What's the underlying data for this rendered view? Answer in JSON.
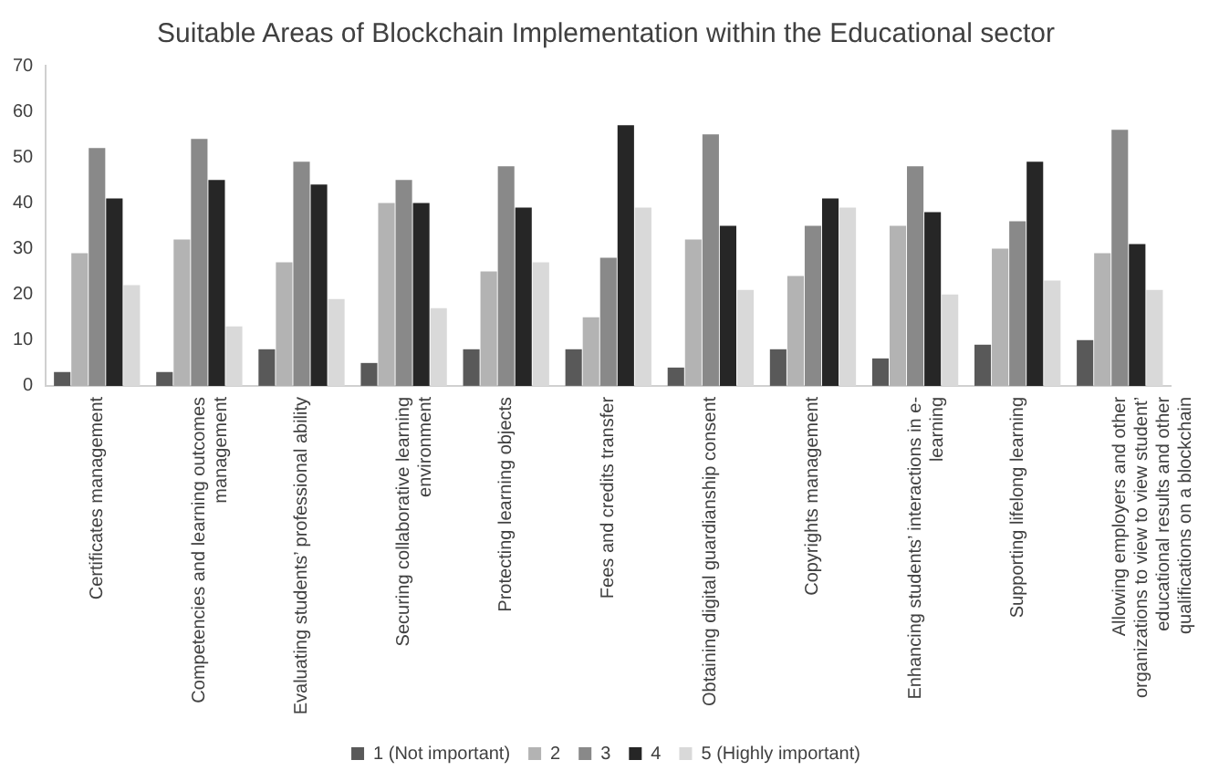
{
  "chart_data": {
    "type": "bar",
    "title": "Suitable Areas of Blockchain Implementation within the Educational sector",
    "categories": [
      "Certificates management",
      "Competencies and learning outcomes management",
      "Evaluating students’ professional ability",
      "Securing collaborative learning environment",
      "Protecting learning objects",
      "Fees and credits transfer",
      "Obtaining digital guardianship consent",
      "Copyrights management",
      "Enhancing students’ interactions in e-learning",
      "Supporting lifelong learning",
      "Allowing employers and other organizations to view to view student’ educational results and other qualifications on a blockchain"
    ],
    "series": [
      {
        "name": "1 (Not important)",
        "color": "#595959",
        "values": [
          3,
          3,
          8,
          5,
          8,
          8,
          4,
          8,
          6,
          9,
          10
        ]
      },
      {
        "name": "2",
        "color": "#b3b3b3",
        "values": [
          29,
          32,
          27,
          40,
          25,
          15,
          32,
          24,
          35,
          30,
          29
        ]
      },
      {
        "name": "3",
        "color": "#898989",
        "values": [
          52,
          54,
          49,
          45,
          48,
          28,
          55,
          35,
          48,
          36,
          56
        ]
      },
      {
        "name": "4",
        "color": "#262626",
        "values": [
          41,
          45,
          44,
          40,
          39,
          57,
          35,
          41,
          38,
          49,
          31
        ]
      },
      {
        "name": "5 (Highly important)",
        "color": "#d9d9d9",
        "values": [
          22,
          13,
          19,
          17,
          27,
          39,
          21,
          39,
          20,
          23,
          21
        ]
      }
    ],
    "ylim": [
      0,
      70
    ],
    "yticks": [
      0,
      10,
      20,
      30,
      40,
      50,
      60,
      70
    ],
    "grid": false,
    "legend": "bottom"
  }
}
